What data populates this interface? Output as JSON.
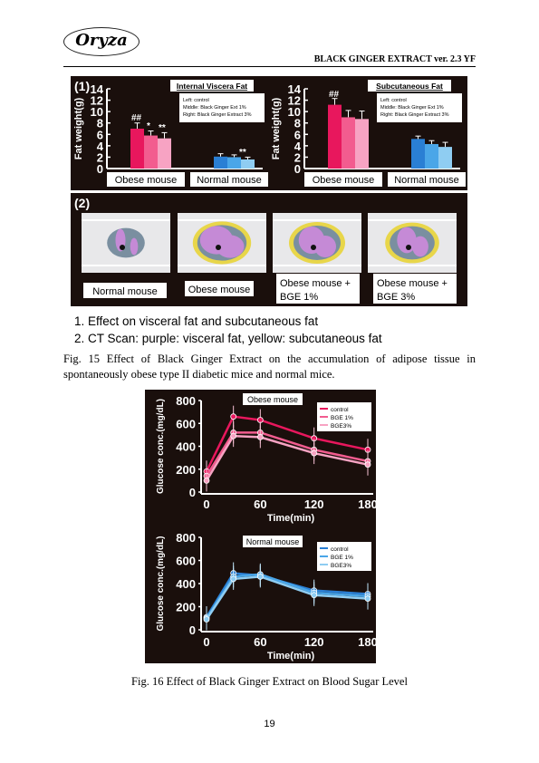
{
  "header": {
    "logo": "Oryza",
    "doc_title": "BLACK GINGER EXTRACT ver. 2.3 YF"
  },
  "figure15": {
    "panel1_label": "(1)",
    "panel2_label": "(2)",
    "chart_data": [
      {
        "type": "bar",
        "title": "Internal Viscera Fat",
        "ylabel": "Fat weight(g)",
        "ylim": [
          0,
          14
        ],
        "yticks": [
          "0",
          "2",
          "4",
          "6",
          "8",
          "10",
          "12",
          "14"
        ],
        "legend": [
          "Left: control",
          "Middle: Black Ginger Ext 1%",
          "Right: Black Ginger Extract 3%"
        ],
        "categories": [
          "Obese mouse",
          "Normal mouse"
        ],
        "series": [
          {
            "values": [
              7.0,
              2.1
            ],
            "errors": [
              1.0,
              0.5
            ]
          },
          {
            "values": [
              5.8,
              2.0
            ],
            "errors": [
              0.8,
              0.4
            ]
          },
          {
            "values": [
              5.3,
              1.6
            ],
            "errors": [
              1.0,
              0.4
            ]
          }
        ],
        "marks": [
          "##",
          "*",
          "**",
          "**"
        ]
      },
      {
        "type": "bar",
        "title": "Subcutaneous Fat",
        "ylabel": "Fat weight(g)",
        "ylim": [
          0,
          14
        ],
        "yticks": [
          "0",
          "2",
          "4",
          "6",
          "8",
          "10",
          "12",
          "14"
        ],
        "legend": [
          "Left: control",
          "Middle: Black Ginger Ext 1%",
          "Right: Black Ginger Extract 3%"
        ],
        "categories": [
          "Obese mouse",
          "Normal mouse"
        ],
        "series": [
          {
            "values": [
              11.2,
              5.2
            ],
            "errors": [
              1.1,
              0.5
            ]
          },
          {
            "values": [
              9.0,
              4.3
            ],
            "errors": [
              1.2,
              0.6
            ]
          },
          {
            "values": [
              8.7,
              3.8
            ],
            "errors": [
              1.4,
              0.8
            ]
          }
        ],
        "marks": [
          "##"
        ]
      }
    ],
    "ct_labels": [
      "Normal mouse",
      "Obese mouse",
      "Obese mouse + BGE 1%",
      "Obese mouse + BGE 3%"
    ],
    "list": [
      "1.   Effect on visceral fat and subcutaneous fat",
      "2.   CT Scan: purple: visceral fat, yellow: subcutaneous fat"
    ],
    "caption": "Fig. 15 Effect of Black Ginger Extract on the accumulation of adipose tissue in spontaneously obese type II diabetic mice and normal mice."
  },
  "figure16": {
    "chart_data": [
      {
        "type": "line",
        "title": "Obese mouse",
        "xlabel": "Time(min)",
        "ylabel": "Glucose conc.(mg/dL)",
        "x": [
          0,
          30,
          60,
          120,
          180
        ],
        "ylim": [
          0,
          800
        ],
        "yticks": [
          "0",
          "200",
          "400",
          "600",
          "800"
        ],
        "xticks": [
          "0",
          "60",
          "120",
          "180"
        ],
        "series": [
          {
            "name": "control",
            "values": [
              180,
              660,
              630,
              470,
              370
            ]
          },
          {
            "name": "BGE 1%",
            "values": [
              140,
              520,
              520,
              370,
              270
            ]
          },
          {
            "name": "BGE3%",
            "values": [
              100,
              490,
              480,
              340,
              240
            ]
          }
        ]
      },
      {
        "type": "line",
        "title": "Normal mouse",
        "xlabel": "Time(min)",
        "ylabel": "Glucose conc.(mg/dL)",
        "x": [
          0,
          30,
          60,
          120,
          180
        ],
        "ylim": [
          0,
          800
        ],
        "yticks": [
          "0",
          "200",
          "400",
          "600",
          "800"
        ],
        "xticks": [
          "0",
          "60",
          "120",
          "180"
        ],
        "series": [
          {
            "name": "control",
            "values": [
              110,
              490,
              470,
              340,
              310
            ]
          },
          {
            "name": "BGE 1%",
            "values": [
              100,
              460,
              480,
              320,
              290
            ]
          },
          {
            "name": "BGE3%",
            "values": [
              90,
              440,
              460,
              300,
              270
            ]
          }
        ]
      }
    ],
    "caption": "Fig. 16    Effect of Black Ginger Extract on Blood Sugar Level"
  },
  "colors": {
    "control": "#e8175d",
    "bge1": "#f25c8f",
    "bge3": "#f7a3c3",
    "n_control": "#2a7fd4",
    "n_bge1": "#4aa6e8",
    "n_bge3": "#8fcdf2",
    "fat_visceral": "#c58ad6",
    "fat_subcutaneous": "#e8d64a"
  },
  "page_number": "19"
}
